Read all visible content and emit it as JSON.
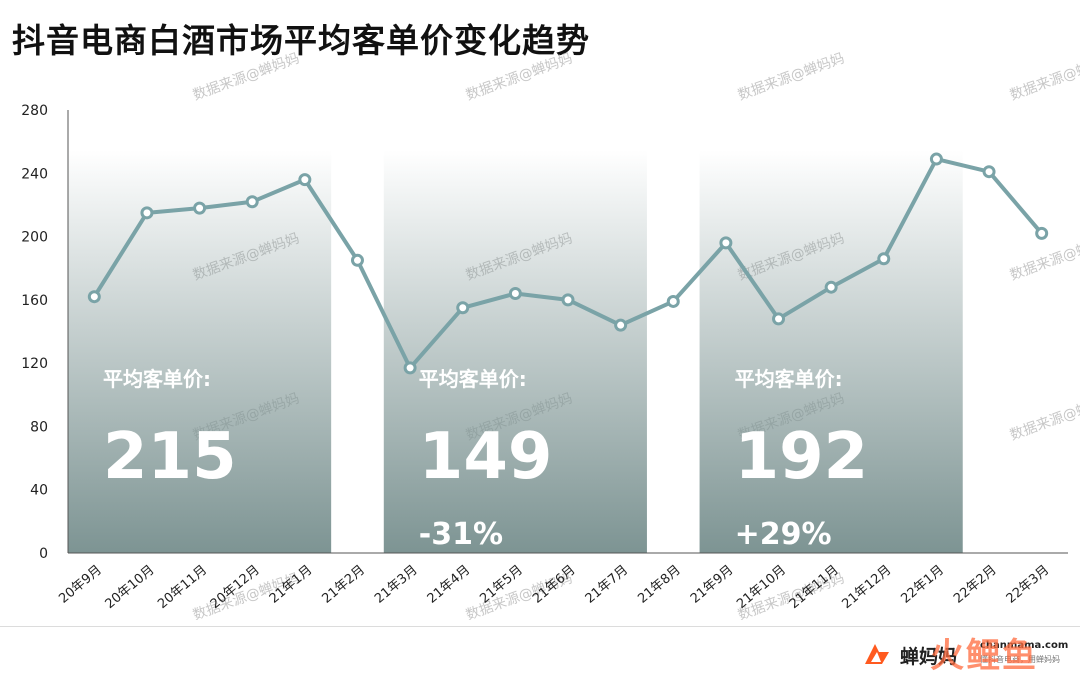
{
  "title": "抖音电商白酒市场平均客单价变化趋势",
  "chart_data": {
    "type": "line",
    "categories": [
      "20年9月",
      "20年10月",
      "20年11月",
      "20年12月",
      "21年1月",
      "21年2月",
      "21年3月",
      "21年4月",
      "21年5月",
      "21年6月",
      "21年7月",
      "21年8月",
      "21年9月",
      "21年10月",
      "21年11月",
      "21年12月",
      "22年1月",
      "22年2月",
      "22年3月"
    ],
    "values": [
      162,
      215,
      218,
      222,
      236,
      185,
      117,
      155,
      164,
      160,
      144,
      159,
      196,
      148,
      168,
      186,
      249,
      241,
      202
    ],
    "ylim": [
      0,
      280
    ],
    "yticks": [
      0,
      40,
      80,
      120,
      160,
      200,
      240,
      280
    ],
    "line_color": "#7aa3a7",
    "panel_color": "#7d9493",
    "panels": [
      {
        "start": 0,
        "end": 4,
        "label": "平均客单价:",
        "value": "215",
        "change": ""
      },
      {
        "start": 6,
        "end": 10,
        "label": "平均客单价:",
        "value": "149",
        "change": "-31%"
      },
      {
        "start": 12,
        "end": 16,
        "label": "平均客单价:",
        "value": "192",
        "change": "+29%"
      }
    ]
  },
  "watermark": "数据来源@蝉妈妈",
  "footer": {
    "brand_name": "蝉妈妈",
    "url": "chanmama.com",
    "slogan": "懂抖音电商，用蝉妈妈",
    "overlay": "火鲤鱼"
  }
}
